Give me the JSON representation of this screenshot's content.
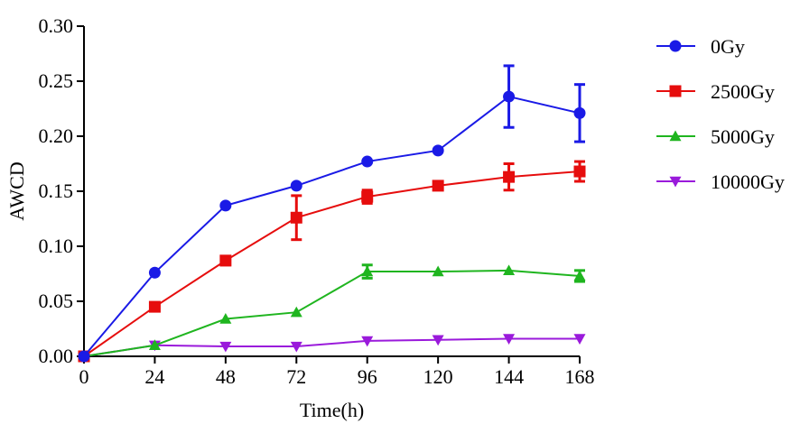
{
  "chart_data": {
    "type": "line",
    "title": "",
    "xlabel": "Time(h)",
    "ylabel": "AWCD",
    "x": [
      0,
      24,
      48,
      72,
      96,
      120,
      144,
      168
    ],
    "x_tick_labels": [
      "0",
      "24",
      "48",
      "72",
      "96",
      "120",
      "144",
      "168"
    ],
    "xlim": [
      0,
      168
    ],
    "ylim": [
      0,
      0.3
    ],
    "y_ticks": [
      0,
      0.05,
      0.1,
      0.15,
      0.2,
      0.25,
      0.3
    ],
    "y_tick_labels": [
      "0.00",
      "0.05",
      "0.10",
      "0.15",
      "0.20",
      "0.25",
      "0.30"
    ],
    "grid": false,
    "legend_position": "right",
    "series": [
      {
        "name": "0Gy",
        "color": "#1a1ae6",
        "marker": "circle",
        "values": [
          0.0,
          0.076,
          0.137,
          0.155,
          0.177,
          0.187,
          0.236,
          0.221
        ],
        "errors": [
          0,
          0,
          0,
          0,
          0,
          0,
          0.028,
          0.026
        ]
      },
      {
        "name": "2500Gy",
        "color": "#e60d0d",
        "marker": "square",
        "values": [
          0.0,
          0.045,
          0.087,
          0.126,
          0.145,
          0.155,
          0.163,
          0.168
        ],
        "errors": [
          0,
          0,
          0.004,
          0.02,
          0.006,
          0,
          0.012,
          0.009
        ]
      },
      {
        "name": "5000Gy",
        "color": "#1fb51f",
        "marker": "triangle-up",
        "values": [
          0.0,
          0.01,
          0.034,
          0.04,
          0.077,
          0.077,
          0.078,
          0.073
        ],
        "errors": [
          0,
          0,
          0,
          0,
          0.006,
          0,
          0,
          0.005
        ]
      },
      {
        "name": "10000Gy",
        "color": "#9a1adb",
        "marker": "triangle-down",
        "values": [
          0.0,
          0.01,
          0.009,
          0.009,
          0.014,
          0.015,
          0.016,
          0.016
        ],
        "errors": [
          0,
          0,
          0,
          0,
          0,
          0,
          0,
          0
        ]
      }
    ]
  }
}
